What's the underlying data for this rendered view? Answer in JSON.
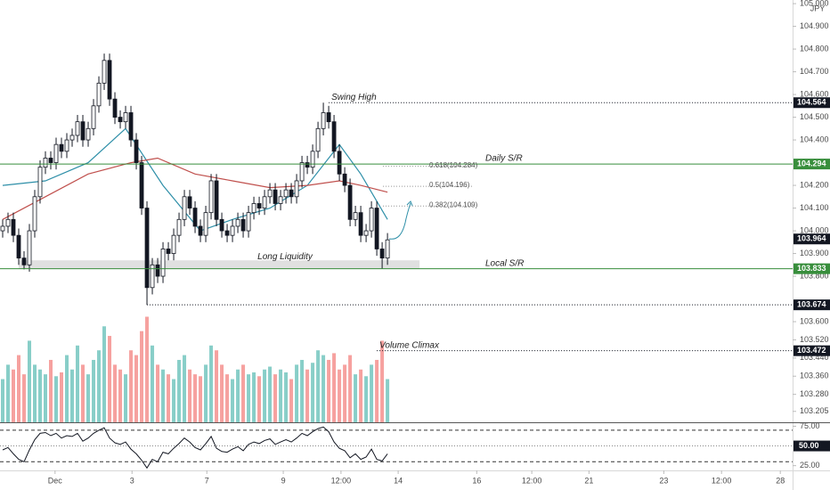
{
  "chart_data": {
    "type": "candlestick",
    "currency": "JPY",
    "up_color": "#26a69a",
    "down_color": "#ef5350",
    "open": [
      104.0,
      104.02,
      104.05,
      103.98,
      103.88,
      103.85,
      104.0,
      104.15,
      104.28,
      104.32,
      104.3,
      104.38,
      104.35,
      104.4,
      104.42,
      104.48,
      104.4,
      104.45,
      104.55,
      104.65,
      104.75,
      104.58,
      104.5,
      104.48,
      104.52,
      104.4,
      104.3,
      104.1,
      103.75,
      103.85,
      103.8,
      103.92,
      103.9,
      103.98,
      104.05,
      104.15,
      104.1,
      104.02,
      103.98,
      104.08,
      104.22,
      104.05,
      104.0,
      103.98,
      104.02,
      104.05,
      104.0,
      104.08,
      104.12,
      104.1,
      104.15,
      104.18,
      104.12,
      104.15,
      104.18,
      104.15,
      104.22,
      104.3,
      104.28,
      104.35,
      104.45,
      104.52,
      104.48,
      104.35,
      104.25,
      104.2,
      104.05,
      104.08,
      103.98,
      104.0,
      104.1,
      103.92,
      103.88
    ],
    "high": [
      104.05,
      104.08,
      104.08,
      104.01,
      103.91,
      104.03,
      104.18,
      104.31,
      104.35,
      104.35,
      104.41,
      104.41,
      104.43,
      104.45,
      104.51,
      104.51,
      104.48,
      104.58,
      104.68,
      104.78,
      104.78,
      104.61,
      104.53,
      104.55,
      104.55,
      104.43,
      104.33,
      104.13,
      103.88,
      103.88,
      103.95,
      103.95,
      104.01,
      104.08,
      104.18,
      104.18,
      104.13,
      104.05,
      104.11,
      104.25,
      104.25,
      104.08,
      104.03,
      104.05,
      104.08,
      104.08,
      104.11,
      104.15,
      104.15,
      104.18,
      104.21,
      104.21,
      104.18,
      104.21,
      104.21,
      104.25,
      104.33,
      104.33,
      104.38,
      104.48,
      104.564,
      104.55,
      104.51,
      104.38,
      104.28,
      104.23,
      104.11,
      104.11,
      104.03,
      104.13,
      104.13,
      103.95,
      103.99
    ],
    "low": [
      103.97,
      103.99,
      103.95,
      103.85,
      103.83,
      103.82,
      103.97,
      104.12,
      104.25,
      104.27,
      104.27,
      104.32,
      104.32,
      104.37,
      104.39,
      104.37,
      104.37,
      104.42,
      104.52,
      104.62,
      104.55,
      104.47,
      104.45,
      104.45,
      104.37,
      104.27,
      104.07,
      103.674,
      103.72,
      103.77,
      103.77,
      103.87,
      103.87,
      103.95,
      104.02,
      104.07,
      103.99,
      103.95,
      103.95,
      104.05,
      104.02,
      103.97,
      103.95,
      103.95,
      103.99,
      103.97,
      103.97,
      104.05,
      104.07,
      104.07,
      104.12,
      104.09,
      104.09,
      104.12,
      104.12,
      104.12,
      104.19,
      104.25,
      104.25,
      104.32,
      104.42,
      104.45,
      104.32,
      104.22,
      104.17,
      104.02,
      104.02,
      103.95,
      103.95,
      103.97,
      103.89,
      103.833,
      103.85
    ],
    "close": [
      104.02,
      104.05,
      103.98,
      103.88,
      103.85,
      104.0,
      104.15,
      104.28,
      104.32,
      104.3,
      104.38,
      104.35,
      104.4,
      104.42,
      104.48,
      104.4,
      104.45,
      104.55,
      104.65,
      104.75,
      104.58,
      104.5,
      104.48,
      104.52,
      104.4,
      104.3,
      104.1,
      103.75,
      103.85,
      103.8,
      103.92,
      103.9,
      103.98,
      104.05,
      104.15,
      104.1,
      104.02,
      103.98,
      104.08,
      104.22,
      104.05,
      104.0,
      103.98,
      104.02,
      104.05,
      104.0,
      104.08,
      104.12,
      104.1,
      104.15,
      104.18,
      104.12,
      104.15,
      104.18,
      104.15,
      104.22,
      104.3,
      104.28,
      104.35,
      104.45,
      104.52,
      104.48,
      104.35,
      104.25,
      104.2,
      104.05,
      104.08,
      103.98,
      104.0,
      104.1,
      103.92,
      103.88,
      103.96
    ],
    "volume": [
      45,
      60,
      55,
      70,
      50,
      85,
      60,
      55,
      50,
      65,
      48,
      52,
      70,
      55,
      80,
      60,
      50,
      65,
      75,
      100,
      90,
      60,
      55,
      50,
      75,
      70,
      95,
      110,
      80,
      60,
      55,
      50,
      45,
      65,
      70,
      55,
      50,
      48,
      60,
      80,
      75,
      60,
      50,
      45,
      55,
      60,
      50,
      52,
      48,
      55,
      58,
      50,
      55,
      52,
      45,
      60,
      65,
      55,
      62,
      75,
      70,
      65,
      72,
      55,
      60,
      70,
      50,
      55,
      48,
      60,
      65,
      85,
      45
    ],
    "volume_lim": [
      0,
      440
    ],
    "ma": [
      {
        "color": "#2e8fa8",
        "x": [
          0,
          8,
          16,
          23,
          30,
          37,
          43,
          50,
          57,
          63,
          67,
          72
        ],
        "values": [
          104.2,
          104.22,
          104.3,
          104.45,
          104.2,
          104.0,
          104.05,
          104.1,
          104.2,
          104.38,
          104.25,
          104.05
        ]
      },
      {
        "color": "#c0504d",
        "x": [
          0,
          8,
          16,
          24,
          29,
          36,
          43,
          50,
          57,
          63,
          67,
          72
        ],
        "values": [
          104.05,
          104.15,
          104.25,
          104.3,
          104.32,
          104.25,
          104.22,
          104.19,
          104.2,
          104.22,
          104.2,
          104.17
        ]
      }
    ],
    "xlim": [
      -0.5,
      147.8
    ],
    "xticks": [
      {
        "value": 9.8,
        "label": "Dec"
      },
      {
        "value": 24.2,
        "label": "3"
      },
      {
        "value": 38.2,
        "label": "7"
      },
      {
        "value": 52.5,
        "label": "9"
      },
      {
        "value": 63.3,
        "label": "12:00"
      },
      {
        "value": 74,
        "label": "14"
      },
      {
        "value": 88.7,
        "label": "16"
      },
      {
        "value": 99,
        "label": "12:00"
      },
      {
        "value": 109.7,
        "label": "21"
      },
      {
        "value": 123.7,
        "label": "23"
      },
      {
        "value": 134.5,
        "label": "12:00"
      },
      {
        "value": 145.5,
        "label": "28"
      }
    ],
    "ylim": [
      103.157,
      105.016
    ],
    "yticks": [
      {
        "value": 105.0,
        "label": "105.000"
      },
      {
        "value": 104.9,
        "label": "104.900"
      },
      {
        "value": 104.8,
        "label": "104.800"
      },
      {
        "value": 104.7,
        "label": "104.700"
      },
      {
        "value": 104.6,
        "label": "104.600"
      },
      {
        "value": 104.5,
        "label": "104.500"
      },
      {
        "value": 104.4,
        "label": "104.400"
      },
      {
        "value": 104.2,
        "label": "104.200"
      },
      {
        "value": 104.1,
        "label": "104.100"
      },
      {
        "value": 104.0,
        "label": "104.000"
      },
      {
        "value": 103.9,
        "label": "103.900"
      },
      {
        "value": 103.8,
        "label": "103.800"
      },
      {
        "value": 103.6,
        "label": "103.600"
      },
      {
        "value": 103.52,
        "label": "103.520"
      },
      {
        "value": 103.44,
        "label": "103.440"
      },
      {
        "value": 103.36,
        "label": "103.360"
      },
      {
        "value": 103.28,
        "label": "103.280"
      },
      {
        "value": 103.205,
        "label": "103.205"
      }
    ],
    "levels": [
      {
        "name": "Swing High",
        "value": 104.564,
        "start": 61,
        "style": "dotted",
        "color": "#131722"
      },
      {
        "name": "Daily S/R",
        "value": 104.294,
        "style": "solid",
        "color": "#388e3c"
      },
      {
        "name": "Local S/R",
        "value": 103.833,
        "style": "solid",
        "color": "#388e3c"
      },
      {
        "value": 103.674,
        "start": 27,
        "style": "dotted",
        "color": "#131722"
      },
      {
        "name": "Volume Climax",
        "value": 103.472,
        "start": 70,
        "style": "dotted",
        "color": "#131722"
      }
    ],
    "last_price": 103.964,
    "fib": [
      {
        "label": "0.618(104.284)",
        "value": 104.284
      },
      {
        "label": "0.5(104.196)",
        "value": 104.196
      },
      {
        "label": "0.382(104.109)",
        "value": 104.109
      }
    ],
    "zone": {
      "label": "Long Liquidity",
      "low": 103.833,
      "high": 103.87,
      "start": 3,
      "end": 78
    },
    "rsi": {
      "values": [
        45,
        48,
        40,
        33,
        30,
        45,
        58,
        66,
        67,
        63,
        66,
        60,
        63,
        62,
        66,
        56,
        60,
        66,
        70,
        73,
        60,
        54,
        52,
        55,
        46,
        40,
        32,
        22,
        33,
        30,
        42,
        40,
        47,
        53,
        60,
        55,
        48,
        45,
        53,
        62,
        47,
        43,
        42,
        46,
        49,
        44,
        52,
        55,
        53,
        57,
        59,
        52,
        55,
        58,
        55,
        60,
        66,
        63,
        68,
        72,
        74,
        68,
        55,
        47,
        44,
        35,
        40,
        33,
        36,
        46,
        33,
        31,
        40
      ],
      "ylim": [
        19,
        80
      ],
      "yticks": [
        {
          "value": 75,
          "label": "75.00"
        },
        {
          "value": 25,
          "label": "25.00"
        }
      ],
      "bands": [
        70,
        30
      ],
      "mid": {
        "value": 50,
        "label": "50.00"
      },
      "color": "#131722"
    }
  }
}
